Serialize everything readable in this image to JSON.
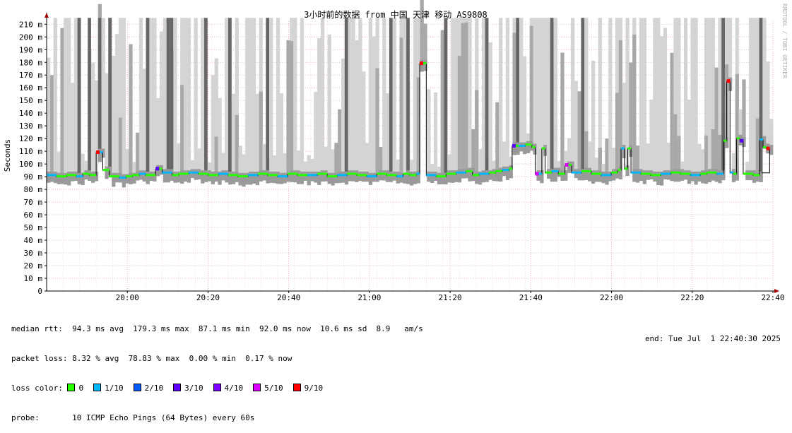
{
  "chart_data": {
    "type": "area",
    "title": "3小时前的数据 from 中国 天津 移动 AS9808",
    "ylabel": "Seconds",
    "watermark": "RRDTOOL / TOBI OETIKER",
    "ylim": [
      0,
      215
    ],
    "ytick_values": [
      0,
      10,
      20,
      30,
      40,
      50,
      60,
      70,
      80,
      90,
      100,
      110,
      120,
      130,
      140,
      150,
      160,
      170,
      180,
      190,
      200,
      210
    ],
    "ytick_labels": [
      "0",
      "10 m",
      "20 m",
      "30 m",
      "40 m",
      "50 m",
      "60 m",
      "70 m",
      "80 m",
      "90 m",
      "100 m",
      "110 m",
      "120 m",
      "130 m",
      "140 m",
      "150 m",
      "160 m",
      "170 m",
      "180 m",
      "190 m",
      "200 m",
      "210 m"
    ],
    "xlim_minutes": [
      0,
      180
    ],
    "xtick_minutes": [
      20,
      40,
      60,
      80,
      100,
      120,
      140,
      160,
      180
    ],
    "xtick_labels": [
      "20:00",
      "20:20",
      "20:40",
      "21:00",
      "21:20",
      "21:40",
      "22:00",
      "22:20",
      "22:40"
    ],
    "grid": true,
    "median_rtt_series": [
      [
        0,
        91
      ],
      [
        3,
        90
      ],
      [
        6,
        91
      ],
      [
        9,
        90
      ],
      [
        11,
        92
      ],
      [
        13,
        91
      ],
      [
        15,
        109
      ],
      [
        17,
        95
      ],
      [
        19,
        90
      ],
      [
        22,
        89
      ],
      [
        24,
        90
      ],
      [
        26,
        91
      ],
      [
        28,
        92
      ],
      [
        30,
        91
      ],
      [
        33,
        96
      ],
      [
        35,
        93
      ],
      [
        38,
        91
      ],
      [
        40,
        92
      ],
      [
        43,
        93
      ],
      [
        46,
        92
      ],
      [
        49,
        91
      ],
      [
        52,
        92
      ],
      [
        55,
        91
      ],
      [
        58,
        90
      ],
      [
        61,
        91
      ],
      [
        64,
        92
      ],
      [
        67,
        91
      ],
      [
        70,
        90
      ],
      [
        73,
        92
      ],
      [
        76,
        91
      ],
      [
        79,
        91
      ],
      [
        82,
        92
      ],
      [
        85,
        90
      ],
      [
        88,
        91
      ],
      [
        91,
        92
      ],
      [
        94,
        91
      ],
      [
        97,
        90
      ],
      [
        100,
        92
      ],
      [
        103,
        91
      ],
      [
        106,
        90
      ],
      [
        108,
        92
      ],
      [
        110,
        91
      ],
      [
        112,
        92
      ],
      [
        113,
        179
      ],
      [
        114,
        179
      ],
      [
        115,
        91
      ],
      [
        118,
        90
      ],
      [
        121,
        92
      ],
      [
        124,
        93
      ],
      [
        127,
        94
      ],
      [
        129,
        91
      ],
      [
        131,
        92
      ],
      [
        134,
        93
      ],
      [
        136,
        94
      ],
      [
        138,
        95
      ],
      [
        140,
        96
      ],
      [
        141,
        114
      ],
      [
        143,
        114
      ],
      [
        145,
        115
      ],
      [
        147,
        113
      ],
      [
        148,
        92
      ],
      [
        150,
        112
      ],
      [
        151,
        93
      ],
      [
        153,
        94
      ],
      [
        155,
        92
      ],
      [
        157,
        99
      ],
      [
        159,
        93
      ],
      [
        162,
        94
      ],
      [
        165,
        92
      ],
      [
        168,
        91
      ],
      [
        171,
        93
      ],
      [
        173,
        95
      ],
      [
        174,
        112
      ],
      [
        175,
        96
      ],
      [
        176,
        112
      ],
      [
        177,
        93
      ],
      [
        180,
        92
      ],
      [
        183,
        91
      ],
      [
        186,
        92
      ],
      [
        189,
        93
      ],
      [
        192,
        92
      ],
      [
        195,
        91
      ],
      [
        198,
        92
      ],
      [
        200,
        93
      ],
      [
        203,
        92
      ],
      [
        205,
        118
      ],
      [
        206,
        165
      ],
      [
        207,
        93
      ],
      [
        208,
        92
      ],
      [
        209,
        120
      ],
      [
        210,
        118
      ],
      [
        211,
        92
      ],
      [
        214,
        91
      ],
      [
        216,
        119
      ],
      [
        217,
        113
      ],
      [
        218,
        112
      ],
      [
        219,
        93
      ]
    ],
    "loss_legend": [
      {
        "label": "0",
        "color": "#26ff00"
      },
      {
        "label": "1/10",
        "color": "#00b8ff"
      },
      {
        "label": "2/10",
        "color": "#0059ff"
      },
      {
        "label": "3/10",
        "color": "#5e00ff"
      },
      {
        "label": "4/10",
        "color": "#7e00ff"
      },
      {
        "label": "5/10",
        "color": "#dd00ff"
      },
      {
        "label": "9/10",
        "color": "#ff0000"
      }
    ],
    "loss_events": [
      {
        "t": 15,
        "level": "9/10"
      },
      {
        "t": 33,
        "level": "3/10"
      },
      {
        "t": 113,
        "level": "9/10"
      },
      {
        "t": 141,
        "level": "3/10"
      },
      {
        "t": 148,
        "level": "5/10"
      },
      {
        "t": 157,
        "level": "5/10"
      },
      {
        "t": 206,
        "level": "9/10"
      },
      {
        "t": 210,
        "level": "3/10"
      },
      {
        "t": 218,
        "level": "9/10"
      }
    ]
  },
  "stats": {
    "median_rtt": "median rtt:  94.3 ms avg  179.3 ms max  87.1 ms min  92.0 ms now  10.6 ms sd  8.9   am/s",
    "packet_loss": "packet loss: 8.32 % avg  78.83 % max  0.00 % min  0.17 % now",
    "loss_color_label": "loss color:",
    "probe": "probe:       10 ICMP Echo Pings (64 Bytes) every 60s",
    "end": "end: Tue Jul  1 22:40:30 2025"
  }
}
